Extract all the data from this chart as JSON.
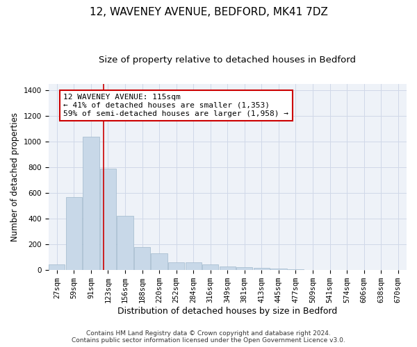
{
  "title": "12, WAVENEY AVENUE, BEDFORD, MK41 7DZ",
  "subtitle": "Size of property relative to detached houses in Bedford",
  "xlabel": "Distribution of detached houses by size in Bedford",
  "ylabel": "Number of detached properties",
  "footnote1": "Contains HM Land Registry data © Crown copyright and database right 2024.",
  "footnote2": "Contains public sector information licensed under the Open Government Licence v3.0.",
  "bar_labels": [
    "27sqm",
    "59sqm",
    "91sqm",
    "123sqm",
    "156sqm",
    "188sqm",
    "220sqm",
    "252sqm",
    "284sqm",
    "316sqm",
    "349sqm",
    "381sqm",
    "413sqm",
    "445sqm",
    "477sqm",
    "509sqm",
    "541sqm",
    "574sqm",
    "606sqm",
    "638sqm",
    "670sqm"
  ],
  "bar_values": [
    45,
    570,
    1040,
    790,
    420,
    180,
    130,
    60,
    60,
    45,
    30,
    25,
    20,
    12,
    8,
    0,
    0,
    0,
    0,
    0,
    0
  ],
  "bar_color": "#c8d8e8",
  "bar_edgecolor": "#a0b8cc",
  "bar_linewidth": 0.5,
  "vline_color": "#cc0000",
  "annotation_text": "12 WAVENEY AVENUE: 115sqm\n← 41% of detached houses are smaller (1,353)\n59% of semi-detached houses are larger (1,958) →",
  "annotation_box_color": "#cc0000",
  "ylim": [
    0,
    1450
  ],
  "grid_color": "#d0d8e8",
  "background_color": "#eef2f8",
  "title_fontsize": 11,
  "subtitle_fontsize": 9.5,
  "ylabel_fontsize": 8.5,
  "xlabel_fontsize": 9,
  "tick_fontsize": 7.5,
  "annotation_fontsize": 8
}
